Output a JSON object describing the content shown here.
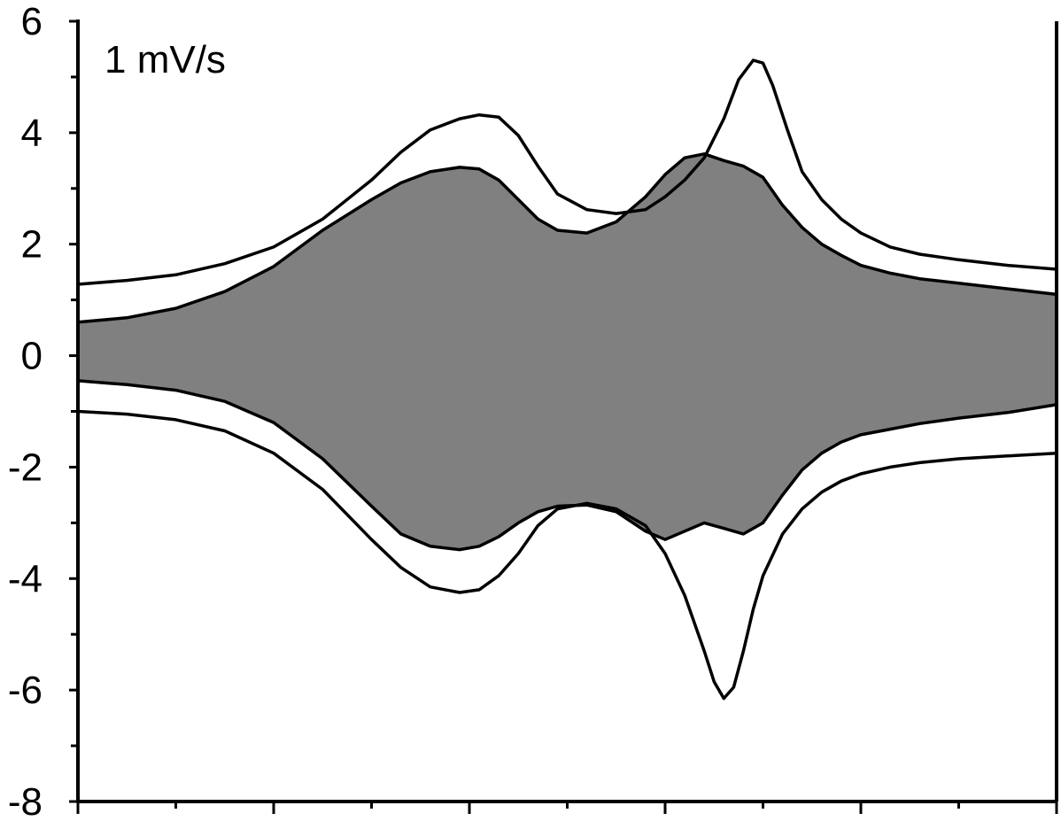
{
  "chart_data": {
    "type": "line",
    "title": "",
    "xlabel": "",
    "ylabel": "",
    "annotation": "1 mV/s",
    "xlim": [
      0,
      10
    ],
    "ylim": [
      -8,
      6
    ],
    "yticks_major": [
      -8,
      -6,
      -4,
      -2,
      0,
      2,
      4,
      6
    ],
    "ytick_labels": [
      "-8",
      "-6",
      "-4",
      "-2",
      "0",
      "2",
      "4",
      "6"
    ],
    "xticks_major": [
      0,
      2,
      4,
      6,
      8,
      10
    ],
    "xticks_minor": [
      1,
      3,
      5,
      7,
      9
    ],
    "grid": false,
    "colors": {
      "fill": "#808080",
      "line": "#000000"
    },
    "series": [
      {
        "role": "outer-upper",
        "x": [
          0,
          0.5,
          1,
          1.5,
          2,
          2.5,
          3,
          3.3,
          3.6,
          3.9,
          4.1,
          4.3,
          4.5,
          4.7,
          4.9,
          5.2,
          5.5,
          5.8,
          6.0,
          6.2,
          6.4,
          6.6,
          6.75,
          6.9,
          7.0,
          7.1,
          7.25,
          7.4,
          7.6,
          7.8,
          8.0,
          8.3,
          8.6,
          9.0,
          9.5,
          10
        ],
        "y": [
          1.28,
          1.35,
          1.45,
          1.65,
          1.95,
          2.45,
          3.15,
          3.65,
          4.05,
          4.25,
          4.32,
          4.28,
          3.95,
          3.4,
          2.9,
          2.62,
          2.55,
          2.62,
          2.85,
          3.15,
          3.55,
          4.25,
          4.95,
          5.3,
          5.25,
          4.85,
          4.05,
          3.3,
          2.8,
          2.45,
          2.2,
          1.95,
          1.82,
          1.72,
          1.62,
          1.55
        ]
      },
      {
        "role": "inner-upper",
        "x": [
          0,
          0.5,
          1,
          1.5,
          2,
          2.5,
          3,
          3.3,
          3.6,
          3.9,
          4.1,
          4.3,
          4.5,
          4.7,
          4.9,
          5.2,
          5.5,
          5.8,
          6.0,
          6.2,
          6.4,
          6.6,
          6.8,
          7.0,
          7.2,
          7.4,
          7.6,
          7.8,
          8.0,
          8.3,
          8.6,
          9.0,
          9.5,
          10
        ],
        "y": [
          0.6,
          0.68,
          0.85,
          1.15,
          1.6,
          2.25,
          2.8,
          3.1,
          3.3,
          3.38,
          3.35,
          3.15,
          2.8,
          2.45,
          2.25,
          2.2,
          2.4,
          2.85,
          3.25,
          3.55,
          3.62,
          3.5,
          3.4,
          3.2,
          2.7,
          2.3,
          2.0,
          1.8,
          1.62,
          1.48,
          1.38,
          1.3,
          1.2,
          1.1
        ]
      },
      {
        "role": "inner-lower",
        "x": [
          0,
          0.5,
          1,
          1.5,
          2,
          2.5,
          3,
          3.3,
          3.6,
          3.9,
          4.1,
          4.3,
          4.5,
          4.7,
          4.9,
          5.2,
          5.5,
          5.8,
          6.0,
          6.2,
          6.4,
          6.6,
          6.8,
          7.0,
          7.2,
          7.4,
          7.6,
          7.8,
          8.0,
          8.3,
          8.6,
          9.0,
          9.5,
          10
        ],
        "y": [
          -0.45,
          -0.52,
          -0.62,
          -0.82,
          -1.2,
          -1.85,
          -2.7,
          -3.2,
          -3.42,
          -3.48,
          -3.42,
          -3.25,
          -3.0,
          -2.8,
          -2.7,
          -2.68,
          -2.8,
          -3.15,
          -3.3,
          -3.15,
          -3.0,
          -3.1,
          -3.2,
          -3.0,
          -2.5,
          -2.05,
          -1.75,
          -1.55,
          -1.42,
          -1.32,
          -1.22,
          -1.12,
          -1.02,
          -0.88
        ]
      },
      {
        "role": "outer-lower",
        "x": [
          0,
          0.5,
          1,
          1.5,
          2,
          2.5,
          3,
          3.3,
          3.6,
          3.9,
          4.1,
          4.3,
          4.5,
          4.7,
          4.9,
          5.2,
          5.5,
          5.8,
          6.0,
          6.2,
          6.4,
          6.5,
          6.6,
          6.7,
          6.8,
          6.9,
          7.0,
          7.2,
          7.4,
          7.6,
          7.8,
          8.0,
          8.3,
          8.6,
          9.0,
          9.5,
          10
        ],
        "y": [
          -1.0,
          -1.05,
          -1.15,
          -1.35,
          -1.75,
          -2.4,
          -3.3,
          -3.8,
          -4.15,
          -4.25,
          -4.2,
          -3.95,
          -3.55,
          -3.05,
          -2.75,
          -2.65,
          -2.75,
          -3.05,
          -3.55,
          -4.3,
          -5.3,
          -5.85,
          -6.15,
          -5.95,
          -5.3,
          -4.55,
          -3.95,
          -3.2,
          -2.75,
          -2.45,
          -2.25,
          -2.12,
          -2.0,
          -1.92,
          -1.85,
          -1.8,
          -1.75
        ]
      }
    ]
  }
}
